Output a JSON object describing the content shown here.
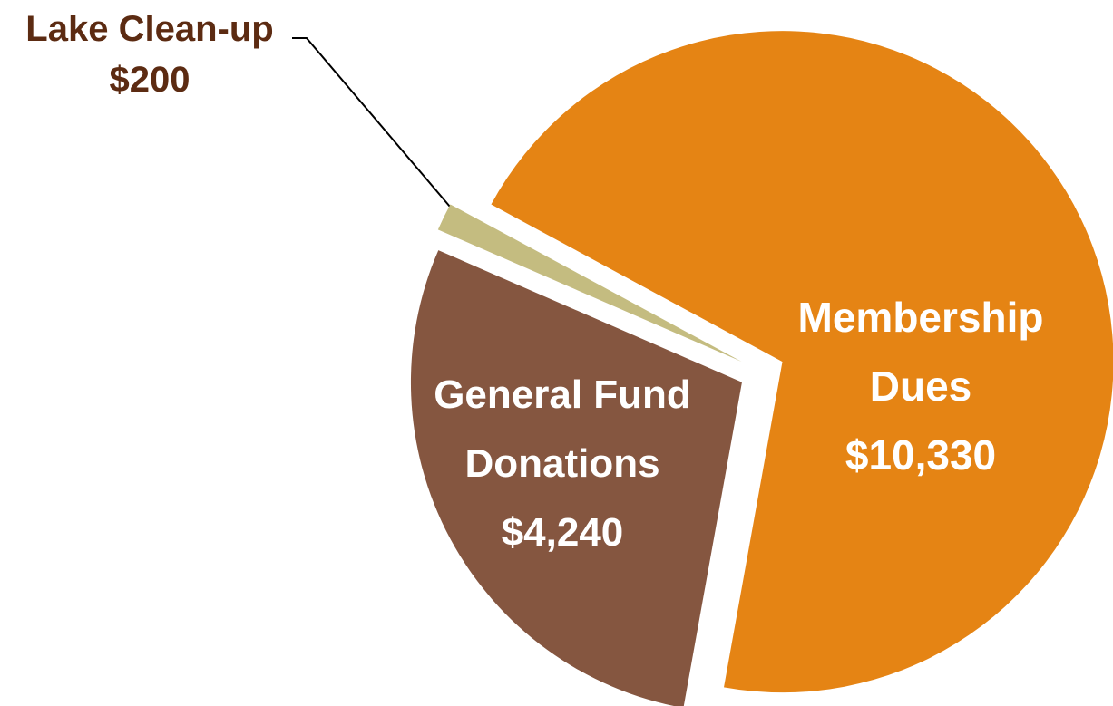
{
  "chart_data": {
    "type": "pie",
    "categories": [
      "Membership Dues",
      "General Fund Donations",
      "Lake Clean-up"
    ],
    "values": [
      10330,
      4240,
      200
    ],
    "value_labels": [
      "$10,330",
      "$4,240",
      "$200"
    ],
    "colors": [
      "#e58414",
      "#855640",
      "#c4bc80"
    ]
  }
}
